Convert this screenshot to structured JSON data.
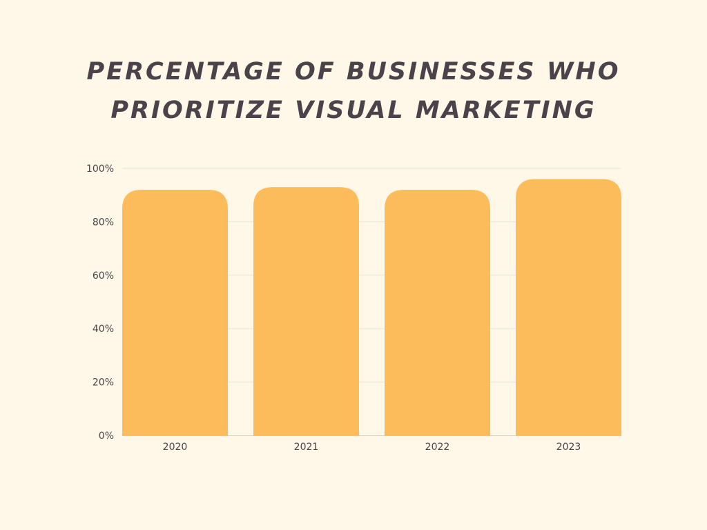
{
  "colors": {
    "background": "#fff7e8",
    "bar": "#fdbc5c",
    "text": "#4a4349",
    "grid": "#e9e2d6",
    "axis": "#cfc8bd"
  },
  "chart_data": {
    "type": "bar",
    "title_lines": [
      "PERCENTAGE OF BUSINESSES WHO",
      "PRIORITIZE VISUAL MARKETING"
    ],
    "categories": [
      "2020",
      "2021",
      "2022",
      "2023"
    ],
    "values": [
      92,
      93,
      92,
      96
    ],
    "xlabel": "",
    "ylabel": "",
    "ylim": [
      0,
      100
    ],
    "yticks": [
      0,
      20,
      40,
      60,
      80,
      100
    ],
    "ytick_labels": [
      "0%",
      "20%",
      "40%",
      "60%",
      "80%",
      "100%"
    ],
    "grid": true,
    "legend": "none"
  }
}
